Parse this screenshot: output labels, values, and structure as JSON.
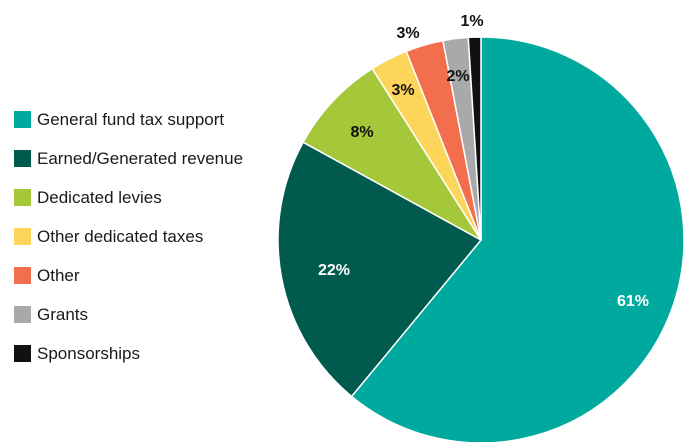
{
  "chart_data": {
    "type": "pie",
    "title": "",
    "legend_position": "left",
    "start_angle_deg": 0,
    "direction": "clockwise",
    "series": [
      {
        "label": "General fund tax support",
        "value": 61,
        "display": "61%",
        "color": "#00a99d",
        "label_color": "#ffffff",
        "label_placement": "inside"
      },
      {
        "label": "Earned/Generated revenue",
        "value": 22,
        "display": "22%",
        "color": "#005a4e",
        "label_color": "#ffffff",
        "label_placement": "inside"
      },
      {
        "label": "Dedicated levies",
        "value": 8,
        "display": "8%",
        "color": "#a5c83a",
        "label_color": "#111111",
        "label_placement": "inside"
      },
      {
        "label": "Other dedicated taxes",
        "value": 3,
        "display": "3%",
        "color": "#fdd55a",
        "label_color": "#111111",
        "label_placement": "inside"
      },
      {
        "label": "Other",
        "value": 3,
        "display": "3%",
        "color": "#f26e4c",
        "label_color": "#111111",
        "label_placement": "outside"
      },
      {
        "label": "Grants",
        "value": 2,
        "display": "2%",
        "color": "#a8a9ab",
        "label_color": "#111111",
        "label_placement": "inside"
      },
      {
        "label": "Sponsorships",
        "value": 1,
        "display": "1%",
        "color": "#111111",
        "label_color": "#111111",
        "label_placement": "outside"
      }
    ]
  }
}
